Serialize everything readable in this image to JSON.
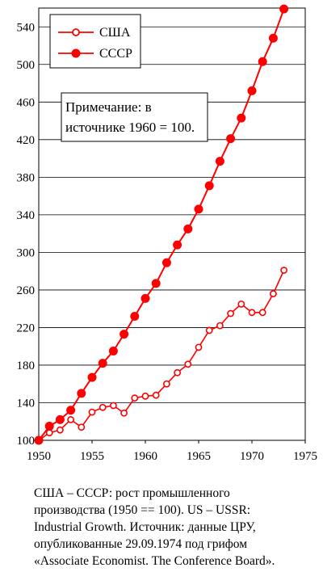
{
  "chart_data": {
    "type": "line",
    "x": [
      1950,
      1951,
      1952,
      1953,
      1954,
      1955,
      1956,
      1957,
      1958,
      1959,
      1960,
      1961,
      1962,
      1963,
      1964,
      1965,
      1966,
      1967,
      1968,
      1969,
      1970,
      1971,
      1972,
      1973
    ],
    "series": [
      {
        "name": "США",
        "marker": "open-circle",
        "color": "#ff0000",
        "values": [
          100,
          108,
          111,
          122,
          114,
          130,
          135,
          137,
          129,
          145,
          147,
          148,
          160,
          172,
          181,
          199,
          217,
          222,
          235,
          245,
          236,
          236,
          256,
          281
        ]
      },
      {
        "name": "СССР",
        "marker": "filled-circle",
        "color": "#ff0000",
        "values": [
          100,
          115,
          122,
          132,
          150,
          167,
          182,
          195,
          213,
          232,
          251,
          267,
          289,
          308,
          325,
          346,
          371,
          397,
          421,
          443,
          472,
          503,
          528,
          559
        ]
      }
    ],
    "xlim": [
      1950,
      1975
    ],
    "ylim": [
      100,
      560
    ],
    "xticks": [
      1950,
      1955,
      1960,
      1965,
      1970,
      1975
    ],
    "yticks": [
      100,
      140,
      180,
      220,
      260,
      300,
      340,
      380,
      420,
      460,
      500,
      540
    ],
    "grid": "horizontal",
    "legend_placement": "top-left",
    "annotation": [
      "Примечание: в",
      "источнике 1960 = 100."
    ]
  },
  "caption": [
    "США – СССР: рост промышленного",
    "производства (1950 == 100). US – USSR:",
    "Industrial Growth. Источник: данные ЦРУ,",
    "опубликованные 29.09.1974 под грифом",
    "«Associate Economist. The Conference Board»."
  ]
}
